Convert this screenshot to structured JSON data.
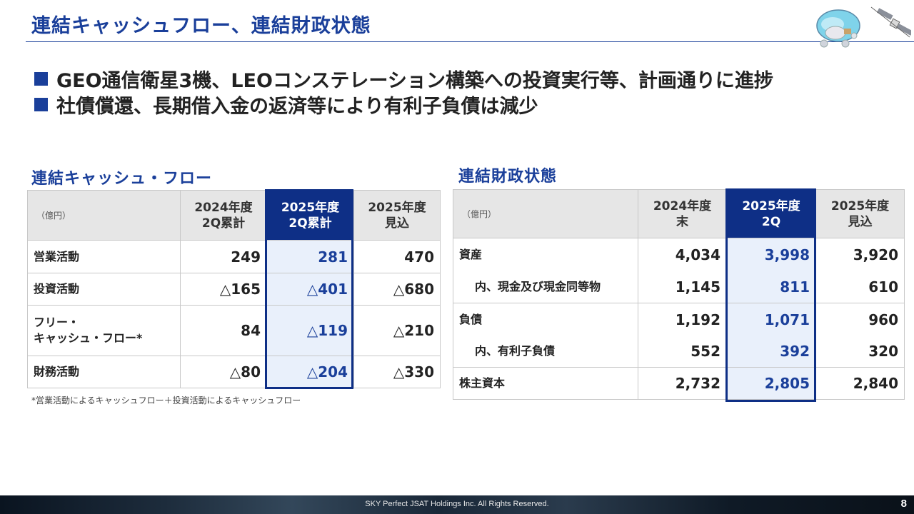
{
  "title": "連結キャッシュフロー、連結財政状態",
  "bullets": [
    "GEO通信衛星3機、LEOコンステレーション構築への投資実行等、計画通りに進捗",
    "社債償還、長期借入金の返済等により有利子負債は減少"
  ],
  "cashflow": {
    "title": "連結キャッシュ・フロー",
    "unit": "（億円）",
    "headers": [
      [
        "2024年度",
        "2Q累計"
      ],
      [
        "2025年度",
        "2Q累計"
      ],
      [
        "2025年度",
        "見込"
      ]
    ],
    "rows": [
      {
        "label_lines": [
          "営業活動"
        ],
        "values": [
          "249",
          "281",
          "470"
        ]
      },
      {
        "label_lines": [
          "投資活動"
        ],
        "values": [
          "△165",
          "△401",
          "△680"
        ]
      },
      {
        "label_lines": [
          "フリー・",
          "キャッシュ・フロー*"
        ],
        "values": [
          "84",
          "△119",
          "△210"
        ]
      },
      {
        "label_lines": [
          "財務活動"
        ],
        "values": [
          "△80",
          "△204",
          "△330"
        ]
      }
    ],
    "footnote": "*営業活動によるキャッシュフロー＋投資活動によるキャッシュフロー"
  },
  "balance": {
    "title": "連結財政状態",
    "unit": "（億円）",
    "headers": [
      [
        "2024年度",
        "末"
      ],
      [
        "2025年度",
        "2Q"
      ],
      [
        "2025年度",
        "見込"
      ]
    ],
    "rows": [
      {
        "label": "資産",
        "values": [
          "4,034",
          "3,998",
          "3,920"
        ]
      },
      {
        "label": "内、現金及び現金同等物",
        "values": [
          "1,145",
          "811",
          "610"
        ]
      },
      {
        "label": "負債",
        "values": [
          "1,192",
          "1,071",
          "960"
        ]
      },
      {
        "label": "内、有利子負債",
        "values": [
          "552",
          "392",
          "320"
        ]
      },
      {
        "label": "株主資本",
        "values": [
          "2,732",
          "2,805",
          "2,840"
        ]
      }
    ]
  },
  "footer": {
    "copyright": "SKY Perfect JSAT Holdings Inc. All Rights Reserved.",
    "page_number": "8"
  },
  "colors": {
    "accent": "#1a3f9a",
    "highlight_header": "#0e2f86",
    "highlight_cell": "#e9f0fb"
  },
  "icons": [
    "mascot-icon",
    "satellite-icon",
    "bullet-square-icon"
  ]
}
